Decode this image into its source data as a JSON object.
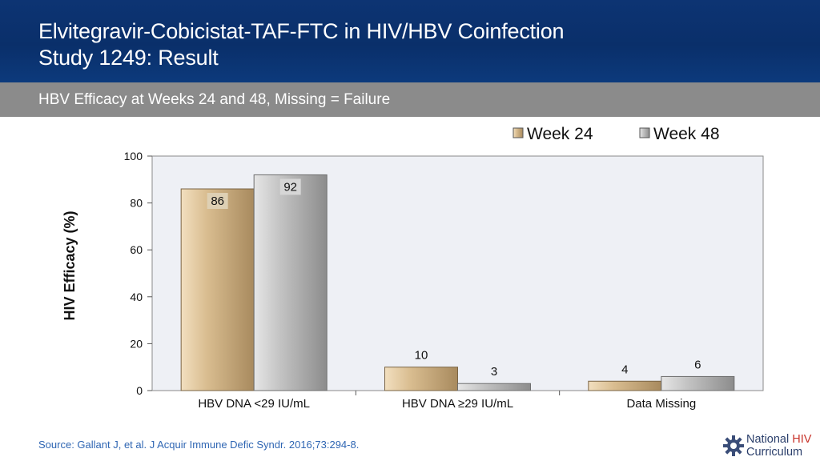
{
  "slide": {
    "title_line1": "Elvitegravir-Cobicistat-TAF-FTC in HIV/HBV Coinfection",
    "title_line2": "Study 1249: Result",
    "subtitle": "HBV Efficacy at Weeks 24 and 48, Missing = Failure",
    "source": "Source: Gallant J, et al. J Acquir Immune Defic Syndr. 2016;73:294-8.",
    "logo_line1_a": "National ",
    "logo_line1_b": "HIV",
    "logo_line2": "Curriculum"
  },
  "colors": {
    "header": "#0d3473",
    "subbar": "#8b8b8b",
    "week24": "#c9a878",
    "week48": "#a8a8a8",
    "plot_bg": "#eef0f5",
    "source_text": "#2f66b3"
  },
  "chart_data": {
    "type": "bar",
    "categories": [
      "HBV DNA <29 IU/mL",
      "HBV DNA ≥29 IU/mL",
      "Data Missing"
    ],
    "series": [
      {
        "name": "Week 24",
        "values": [
          86,
          10,
          4
        ]
      },
      {
        "name": "Week 48",
        "values": [
          92,
          3,
          6
        ]
      }
    ],
    "xlabel": "",
    "ylabel": "HIV Efficacy (%)",
    "ylim": [
      0,
      100
    ],
    "yticks": [
      0,
      20,
      40,
      60,
      80,
      100
    ],
    "grid": false,
    "legend": "top-right"
  }
}
